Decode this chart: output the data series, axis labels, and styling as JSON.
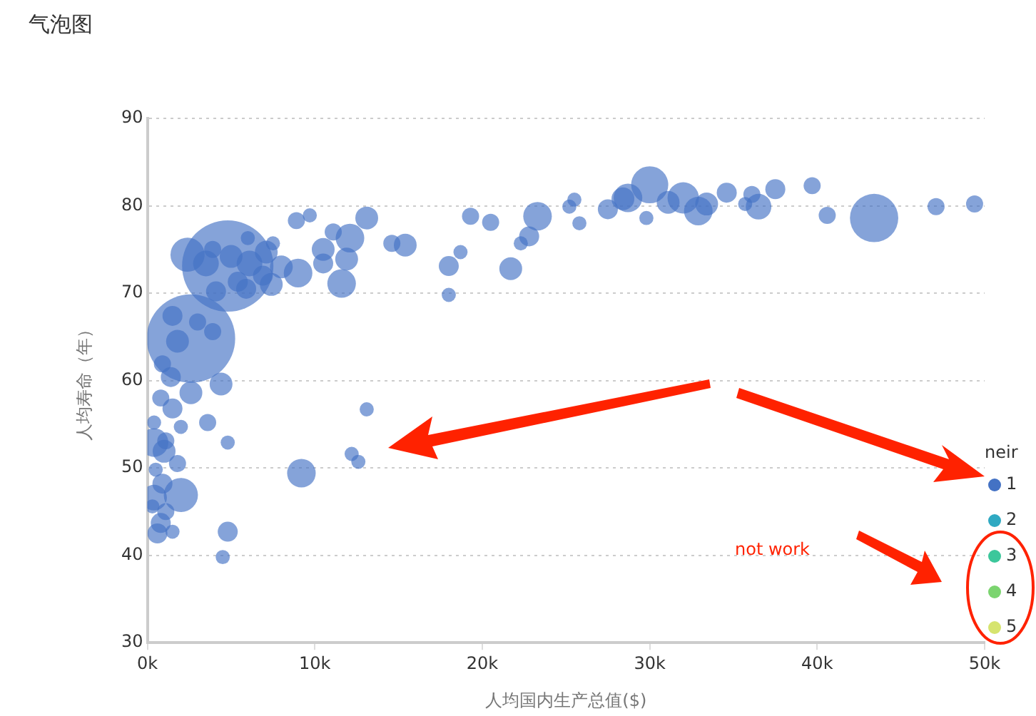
{
  "chart_data": {
    "type": "bubble",
    "title": "气泡图",
    "xlabel": "人均国内生产总值($)",
    "ylabel": "人均寿命（年）",
    "legend_title": "neir",
    "legend": "right",
    "grid": "y",
    "xlim": [
      0,
      50
    ],
    "xticks": [
      {
        "value": 0,
        "label": "0k"
      },
      {
        "value": 10,
        "label": "10k"
      },
      {
        "value": 20,
        "label": "20k"
      },
      {
        "value": 30,
        "label": "30k"
      },
      {
        "value": 40,
        "label": "40k"
      },
      {
        "value": 50,
        "label": "50k"
      }
    ],
    "ylim": [
      30,
      90
    ],
    "yticks": [
      30,
      40,
      50,
      60,
      70,
      80,
      90
    ],
    "x": [
      30.0,
      43.4,
      47.1,
      49.4,
      39.7,
      40.6,
      37.5,
      36.5,
      36.1,
      35.7,
      34.6,
      33.4,
      32.9,
      32.0,
      31.1,
      29.8,
      28.7,
      28.4,
      27.5,
      25.5,
      25.2,
      25.8,
      23.3,
      22.8,
      22.3,
      21.7,
      20.5,
      19.3,
      18.7,
      18.0,
      18.0,
      15.4,
      14.6,
      13.1,
      12.1,
      11.9,
      11.6,
      11.1,
      10.5,
      10.5,
      9.7,
      8.9,
      9.0,
      8.0,
      6.9,
      6.0,
      7.5,
      7.1,
      7.4,
      5.9,
      5.0,
      3.9,
      2.4,
      4.8,
      3.5,
      4.1,
      5.4,
      6.1,
      2.6,
      1.5,
      3.0,
      3.9,
      1.8,
      0.9,
      1.4,
      2.6,
      4.4,
      0.8,
      1.5,
      0.4,
      3.6,
      2.0,
      1.1,
      0.4,
      1.0,
      4.8,
      1.8,
      0.5,
      9.2,
      13.1,
      12.2,
      12.6,
      2.0,
      0.4,
      0.9,
      0.8,
      1.5,
      0.6,
      4.8,
      4.5,
      1.1,
      0.3
    ],
    "series": [
      {
        "name": "1",
        "color": "#4472c4",
        "values": [
          82.4,
          78.6,
          79.9,
          80.2,
          82.3,
          78.9,
          81.9,
          79.9,
          81.3,
          80.2,
          81.5,
          80.2,
          79.4,
          80.9,
          80.4,
          78.6,
          80.9,
          80.8,
          79.6,
          80.7,
          79.9,
          78.0,
          78.8,
          76.5,
          75.7,
          72.8,
          78.1,
          78.8,
          74.7,
          73.1,
          69.8,
          75.5,
          75.7,
          78.6,
          76.3,
          73.9,
          71.1,
          77.0,
          75.0,
          73.4,
          78.9,
          78.3,
          72.3,
          73.0,
          72.0,
          76.3,
          75.7,
          74.7,
          71.0,
          70.5,
          74.2,
          75.0,
          74.4,
          73.1,
          73.4,
          70.2,
          71.3,
          73.4,
          64.8,
          67.4,
          66.7,
          65.6,
          64.5,
          61.9,
          60.4,
          58.6,
          59.6,
          58.0,
          56.8,
          55.2,
          55.2,
          54.7,
          53.1,
          52.9,
          51.9,
          52.9,
          50.5,
          49.8,
          49.4,
          56.7,
          51.6,
          50.7,
          46.9,
          46.6,
          48.2,
          43.7,
          42.7,
          42.5,
          42.7,
          39.8,
          45.0,
          45.6
        ],
        "sizes": [
          0.165,
          0.28,
          0.035,
          0.035,
          0.035,
          0.035,
          0.048,
          0.079,
          0.035,
          0.024,
          0.048,
          0.0625,
          0.098,
          0.118,
          0.0625,
          0.024,
          0.098,
          0.0625,
          0.048,
          0.024,
          0.024,
          0.024,
          0.098,
          0.048,
          0.024,
          0.0625,
          0.035,
          0.035,
          0.024,
          0.048,
          0.024,
          0.0625,
          0.035,
          0.0625,
          0.098,
          0.0625,
          0.098,
          0.035,
          0.0625,
          0.048,
          0.024,
          0.035,
          0.098,
          0.0625,
          0.048,
          0.024,
          0.024,
          0.0625,
          0.0625,
          0.048,
          0.0625,
          0.035,
          0.14,
          1,
          0.079,
          0.048,
          0.048,
          0.079,
          0.94,
          0.048,
          0.035,
          0.035,
          0.0625,
          0.035,
          0.048,
          0.0625,
          0.0625,
          0.035,
          0.048,
          0.024,
          0.035,
          0.024,
          0.035,
          0.098,
          0.0625,
          0.024,
          0.035,
          0.024,
          0.098,
          0.024,
          0.024,
          0.024,
          0.14,
          0.079,
          0.048,
          0.048,
          0.024,
          0.048,
          0.048,
          0.024,
          0.035,
          0.024
        ]
      },
      {
        "name": "2",
        "color": "#2fa9c2",
        "values": [
          null,
          null,
          null,
          null,
          null,
          null,
          null,
          null,
          null,
          null,
          null,
          null,
          null,
          null,
          null,
          null,
          null,
          null,
          null,
          null,
          null,
          null,
          null,
          null,
          null,
          null,
          null,
          null,
          null,
          null,
          null,
          null,
          null,
          null,
          null,
          null,
          null,
          null,
          null,
          null,
          null,
          null,
          null,
          null,
          null,
          null,
          null,
          null,
          null,
          null,
          null,
          null,
          null,
          null,
          null,
          null,
          null,
          null,
          null,
          null,
          null,
          null,
          null,
          null,
          null,
          null,
          null,
          null,
          null,
          null,
          null,
          null,
          null,
          null,
          null,
          null,
          null,
          null,
          null,
          null,
          null,
          null,
          null,
          null,
          null,
          null,
          null,
          null,
          null,
          null,
          null,
          null
        ]
      },
      {
        "name": "3",
        "color": "#3cc79b",
        "values": [
          null,
          null,
          null,
          null,
          null,
          null,
          null,
          null,
          null,
          null,
          null,
          null,
          null,
          null,
          null,
          null,
          null,
          null,
          null,
          null,
          null,
          null,
          null,
          null,
          null,
          null,
          null,
          null,
          null,
          null,
          null,
          null,
          null,
          null,
          null,
          null,
          null,
          null,
          null,
          null,
          null,
          null,
          null,
          null,
          null,
          null,
          null,
          null,
          null,
          null,
          null,
          null,
          null,
          null,
          null,
          null,
          null,
          null,
          null,
          null,
          null,
          null,
          null,
          null,
          null,
          null,
          null,
          null,
          null,
          null,
          null,
          null,
          null,
          null,
          null,
          null,
          null,
          null,
          null,
          null,
          null,
          null,
          null,
          null,
          null,
          null,
          null,
          null,
          null,
          null,
          null,
          null
        ]
      },
      {
        "name": "4",
        "color": "#7bd46f",
        "values": [
          null,
          null,
          null,
          null,
          null,
          null,
          null,
          null,
          null,
          null,
          null,
          null,
          null,
          null,
          null,
          null,
          null,
          null,
          null,
          null,
          null,
          null,
          null,
          null,
          null,
          null,
          null,
          null,
          null,
          null,
          null,
          null,
          null,
          null,
          null,
          null,
          null,
          null,
          null,
          null,
          null,
          null,
          null,
          null,
          null,
          null,
          null,
          null,
          null,
          null,
          null,
          null,
          null,
          null,
          null,
          null,
          null,
          null,
          null,
          null,
          null,
          null,
          null,
          null,
          null,
          null,
          null,
          null,
          null,
          null,
          null,
          null,
          null,
          null,
          null,
          null,
          null,
          null,
          null,
          null,
          null,
          null,
          null,
          null,
          null,
          null,
          null,
          null,
          null,
          null,
          null,
          null
        ]
      },
      {
        "name": "5",
        "color": "#d6e46f",
        "values": [
          null,
          null,
          null,
          null,
          null,
          null,
          null,
          null,
          null,
          null,
          null,
          null,
          null,
          null,
          null,
          null,
          null,
          null,
          null,
          null,
          null,
          null,
          null,
          null,
          null,
          null,
          null,
          null,
          null,
          null,
          null,
          null,
          null,
          null,
          null,
          null,
          null,
          null,
          null,
          null,
          null,
          null,
          null,
          null,
          null,
          null,
          null,
          null,
          null,
          null,
          null,
          null,
          null,
          null,
          null,
          null,
          null,
          null,
          null,
          null,
          null,
          null,
          null,
          null,
          null,
          null,
          null,
          null,
          null,
          null,
          null,
          null,
          null,
          null,
          null,
          null,
          null,
          null,
          null,
          null,
          null,
          null,
          null,
          null,
          null,
          null,
          null,
          null,
          null,
          null,
          null,
          null
        ]
      }
    ],
    "annotations": [
      "not work"
    ]
  }
}
